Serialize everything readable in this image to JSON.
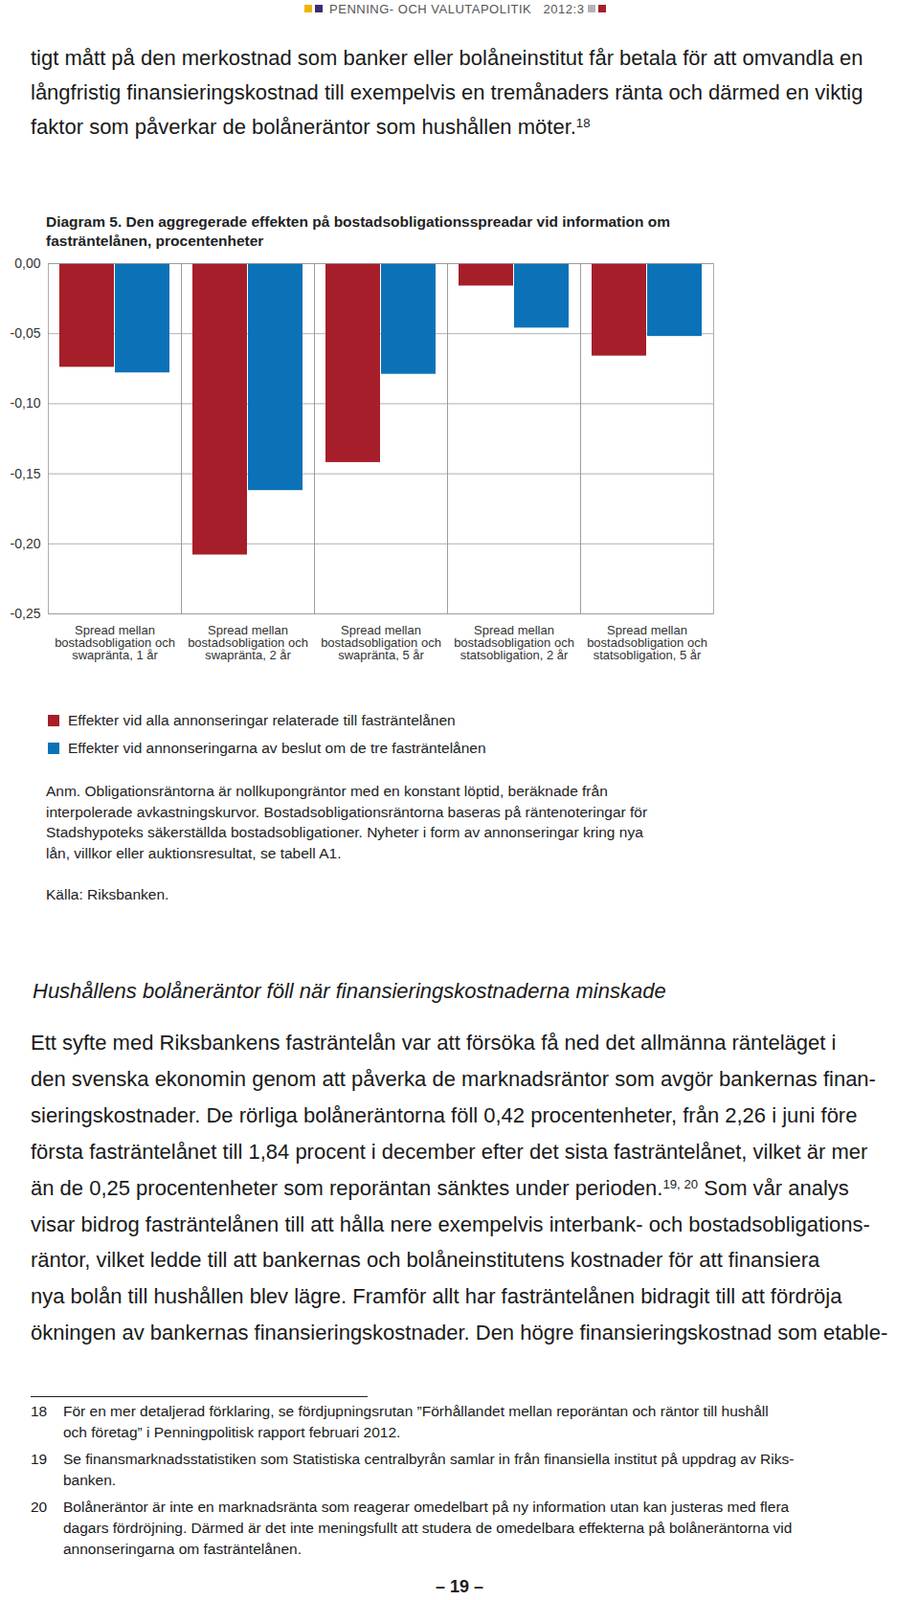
{
  "header": {
    "title": "PENNING- OCH VALUTAPOLITIK",
    "issue": "2012:3"
  },
  "intro_lines": [
    [
      "tigt mått på den merkostnad som banker eller bolåneinstitut får betala för att omvandla en"
    ],
    [
      "långfristig finansieringskostnad till exempelvis en tremånaders ränta och därmed en viktig"
    ],
    [
      "faktor som påverkar de bolåneräntor som hushållen möter.",
      {
        "sup": "18"
      }
    ]
  ],
  "chart_data": {
    "type": "bar",
    "title": "Diagram 5. Den aggregerade effekten på bostadsobligationsspreadar vid information om fasträntelånen, procentenheter",
    "categories": [
      "Spread mellan bostadsobligation och swapränta, 1 år",
      "Spread mellan bostadsobligation och swapränta, 2 år",
      "Spread mellan bostadsobligation och swapränta, 5 år",
      "Spread mellan bostadsobligation och statsobligation, 2 år",
      "Spread mellan bostadsobligation och statsobligation, 5 år"
    ],
    "series": [
      {
        "name": "Effekter vid alla annonseringar relaterade till fasträntelånen",
        "color": "#a61e29",
        "values": [
          -0.074,
          -0.208,
          -0.142,
          -0.016,
          -0.066
        ]
      },
      {
        "name": "Effekter vid annonseringarna av beslut om de tre fasträntelånen",
        "color": "#0b72b8",
        "values": [
          -0.078,
          -0.162,
          -0.079,
          -0.046,
          -0.052
        ]
      }
    ],
    "ylim": [
      -0.25,
      0
    ],
    "yticks": [
      {
        "value": -0.25,
        "label": "-0,25"
      },
      {
        "value": -0.2,
        "label": "-0,20"
      },
      {
        "value": -0.15,
        "label": "-0,15"
      },
      {
        "value": -0.1,
        "label": "-0,10"
      },
      {
        "value": -0.05,
        "label": "-0,05"
      },
      {
        "value": 0,
        "label": "0,00"
      }
    ],
    "grid": true,
    "legend": "bottom",
    "note": [
      "Anm. Obligationsräntorna är nollkupongräntor med en konstant löptid, beräknade från",
      "interpolerade avkastningskurvor. Bostadsobligationsräntorna baseras på räntenoteringar för",
      "Stadshypoteks säkerställda bostadsobligationer. Nyheter i form av annonseringar kring nya",
      "lån, villkor eller auktionsresultat, se tabell A1."
    ],
    "source": "Källa: Riksbanken."
  },
  "section_title": "Hushållens bolåneräntor föll när finansieringskostnaderna minskade",
  "body_lines": [
    [
      "Ett syfte med Riksbankens fasträntelån var att försöka få ned det allmänna ränteläget i"
    ],
    [
      "den svenska ekonomin genom att påverka de marknadsräntor som avgör bankernas finan-"
    ],
    [
      "sieringskostnader. De rörliga bolåneräntorna föll 0,42 procentenheter, från 2,26 i juni före"
    ],
    [
      "första fasträntelånet till 1,84 procent i december efter det sista fasträntelånet, vilket är mer"
    ],
    [
      "än de 0,25 procentenheter som reporäntan sänktes under perioden.",
      {
        "sup": "19, 20"
      },
      " Som vår analys"
    ],
    [
      "visar bidrog fasträntelånen till att hålla nere exempelvis interbank- och bostadsobligations-"
    ],
    [
      "räntor, vilket ledde till att bankernas och bolåneinstitutens kostnader för att finansiera"
    ],
    [
      "nya bolån till hushållen blev lägre. Framför allt har fasträntelånen bidragit till att fördröja"
    ],
    [
      "ökningen av bankernas finansieringskostnader. Den högre finansieringskostnad som etable-"
    ]
  ],
  "footnotes": [
    {
      "number": "18",
      "lines": [
        "För en mer detaljerad förklaring, se fördjupningsrutan ”Förhållandet mellan reporäntan och räntor till hushåll",
        "och företag” i Penningpolitisk rapport februari 2012."
      ]
    },
    {
      "number": "19",
      "lines": [
        "Se finansmarknadsstatistiken som Statistiska centralbyrån samlar in från finansiella institut på uppdrag av Riks-",
        "banken."
      ]
    },
    {
      "number": "20",
      "lines": [
        "Bolåneräntor är inte en marknadsränta som reagerar omedelbart på ny information utan kan justeras med flera",
        "dagars fördröjning. Därmed är det inte meningsfullt att studera de omedelbara effekterna på bolåneräntorna vid",
        "annonseringarna om fasträntelånen."
      ]
    }
  ],
  "page_number": "– 19 –"
}
